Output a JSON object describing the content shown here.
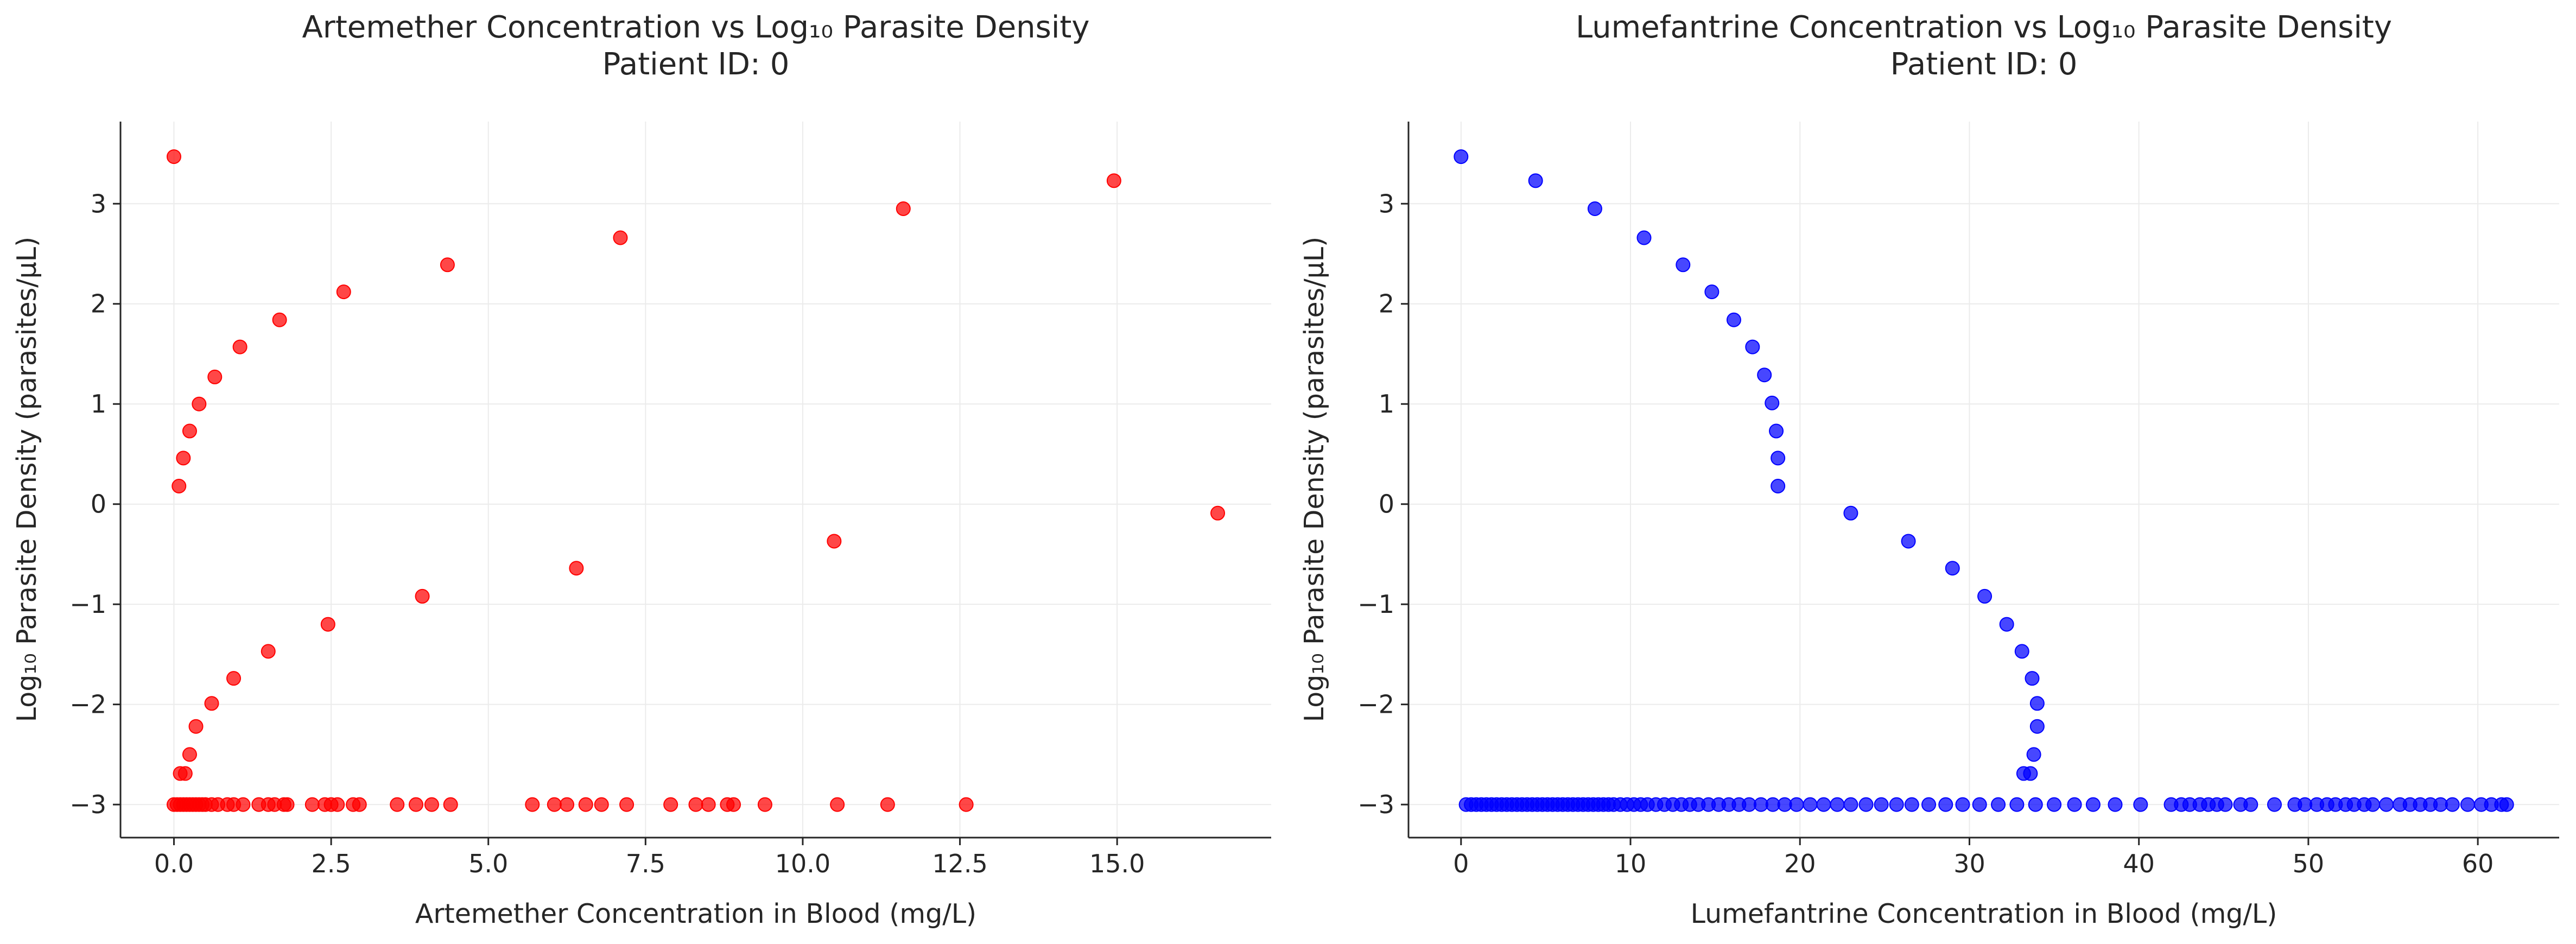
{
  "chart_data": [
    {
      "type": "scatter",
      "title": "Artemether Concentration vs Log₁₀ Parasite Density",
      "subtitle": "Patient ID: 0",
      "xlabel": "Artemether Concentration in Blood (mg/L)",
      "ylabel": "Log₁₀ Parasite Density (parasites/μL)",
      "xlim": [
        -0.85,
        17.45
      ],
      "ylim": [
        -3.33,
        3.82
      ],
      "xticks": [
        0,
        2.5,
        5,
        7.5,
        10,
        12.5,
        15
      ],
      "xtick_labels": [
        "0.0",
        "2.5",
        "5.0",
        "7.5",
        "10.0",
        "12.5",
        "15.0"
      ],
      "yticks": [
        -3,
        -2,
        -1,
        0,
        1,
        2,
        3
      ],
      "ytick_labels": [
        "−3",
        "−2",
        "−1",
        "0",
        "1",
        "2",
        "3"
      ],
      "grid": true,
      "color": "#ff0000",
      "points": [
        [
          0.0,
          3.47
        ],
        [
          0.08,
          0.18
        ],
        [
          0.15,
          0.46
        ],
        [
          0.25,
          0.73
        ],
        [
          0.4,
          1.0
        ],
        [
          0.65,
          1.27
        ],
        [
          1.05,
          1.57
        ],
        [
          1.68,
          1.84
        ],
        [
          2.7,
          2.12
        ],
        [
          4.35,
          2.39
        ],
        [
          7.1,
          2.66
        ],
        [
          11.6,
          2.95
        ],
        [
          14.95,
          3.23
        ],
        [
          16.6,
          -0.09
        ],
        [
          10.5,
          -0.37
        ],
        [
          6.4,
          -0.64
        ],
        [
          3.95,
          -0.92
        ],
        [
          2.45,
          -1.2
        ],
        [
          1.5,
          -1.47
        ],
        [
          0.95,
          -1.74
        ],
        [
          0.6,
          -1.99
        ],
        [
          0.35,
          -2.22
        ],
        [
          0.25,
          -2.5
        ],
        [
          0.1,
          -2.69
        ],
        [
          0.18,
          -2.69
        ],
        [
          0.0,
          -3.0
        ],
        [
          0.05,
          -3.0
        ],
        [
          0.1,
          -3.0
        ],
        [
          0.15,
          -3.0
        ],
        [
          0.2,
          -3.0
        ],
        [
          0.25,
          -3.0
        ],
        [
          0.3,
          -3.0
        ],
        [
          0.35,
          -3.0
        ],
        [
          0.4,
          -3.0
        ],
        [
          0.45,
          -3.0
        ],
        [
          0.5,
          -3.0
        ],
        [
          0.6,
          -3.0
        ],
        [
          0.7,
          -3.0
        ],
        [
          0.85,
          -3.0
        ],
        [
          0.95,
          -3.0
        ],
        [
          1.1,
          -3.0
        ],
        [
          1.35,
          -3.0
        ],
        [
          1.5,
          -3.0
        ],
        [
          1.6,
          -3.0
        ],
        [
          1.75,
          -3.0
        ],
        [
          1.8,
          -3.0
        ],
        [
          2.2,
          -3.0
        ],
        [
          2.4,
          -3.0
        ],
        [
          2.5,
          -3.0
        ],
        [
          2.6,
          -3.0
        ],
        [
          2.85,
          -3.0
        ],
        [
          2.95,
          -3.0
        ],
        [
          3.55,
          -3.0
        ],
        [
          3.85,
          -3.0
        ],
        [
          4.1,
          -3.0
        ],
        [
          4.4,
          -3.0
        ],
        [
          5.7,
          -3.0
        ],
        [
          6.05,
          -3.0
        ],
        [
          6.25,
          -3.0
        ],
        [
          6.55,
          -3.0
        ],
        [
          6.8,
          -3.0
        ],
        [
          7.2,
          -3.0
        ],
        [
          7.9,
          -3.0
        ],
        [
          8.3,
          -3.0
        ],
        [
          8.5,
          -3.0
        ],
        [
          8.8,
          -3.0
        ],
        [
          8.9,
          -3.0
        ],
        [
          9.4,
          -3.0
        ],
        [
          10.55,
          -3.0
        ],
        [
          11.35,
          -3.0
        ],
        [
          12.6,
          -3.0
        ]
      ]
    },
    {
      "type": "scatter",
      "title": "Lumefantrine Concentration vs Log₁₀ Parasite Density",
      "subtitle": "Patient ID: 0",
      "xlabel": "Lumefantrine Concentration in Blood (mg/L)",
      "ylabel": "Log₁₀ Parasite Density (parasites/μL)",
      "xlim": [
        -3.1,
        64.8
      ],
      "ylim": [
        -3.33,
        3.82
      ],
      "xticks": [
        0,
        10,
        20,
        30,
        40,
        50,
        60
      ],
      "xtick_labels": [
        "0",
        "10",
        "20",
        "30",
        "40",
        "50",
        "60"
      ],
      "yticks": [
        -3,
        -2,
        -1,
        0,
        1,
        2,
        3
      ],
      "ytick_labels": [
        "−3",
        "−2",
        "−1",
        "0",
        "1",
        "2",
        "3"
      ],
      "grid": true,
      "color": "#0000ff",
      "points": [
        [
          0.0,
          3.47
        ],
        [
          4.4,
          3.23
        ],
        [
          7.9,
          2.95
        ],
        [
          10.8,
          2.66
        ],
        [
          13.1,
          2.39
        ],
        [
          14.8,
          2.12
        ],
        [
          16.1,
          1.84
        ],
        [
          17.2,
          1.57
        ],
        [
          17.9,
          1.29
        ],
        [
          18.35,
          1.01
        ],
        [
          18.6,
          0.73
        ],
        [
          18.7,
          0.46
        ],
        [
          18.7,
          0.18
        ],
        [
          23.0,
          -0.09
        ],
        [
          26.4,
          -0.37
        ],
        [
          29.0,
          -0.64
        ],
        [
          30.9,
          -0.92
        ],
        [
          32.2,
          -1.2
        ],
        [
          33.1,
          -1.47
        ],
        [
          33.7,
          -1.74
        ],
        [
          34.0,
          -1.99
        ],
        [
          34.0,
          -2.22
        ],
        [
          33.8,
          -2.5
        ],
        [
          33.2,
          -2.69
        ],
        [
          33.6,
          -2.69
        ],
        [
          0.3,
          -3.0
        ],
        [
          0.6,
          -3.0
        ],
        [
          0.9,
          -3.0
        ],
        [
          1.2,
          -3.0
        ],
        [
          1.5,
          -3.0
        ],
        [
          1.8,
          -3.0
        ],
        [
          2.1,
          -3.0
        ],
        [
          2.4,
          -3.0
        ],
        [
          2.7,
          -3.0
        ],
        [
          3.0,
          -3.0
        ],
        [
          3.3,
          -3.0
        ],
        [
          3.6,
          -3.0
        ],
        [
          3.9,
          -3.0
        ],
        [
          4.2,
          -3.0
        ],
        [
          4.5,
          -3.0
        ],
        [
          4.8,
          -3.0
        ],
        [
          5.1,
          -3.0
        ],
        [
          5.4,
          -3.0
        ],
        [
          5.7,
          -3.0
        ],
        [
          6.0,
          -3.0
        ],
        [
          6.3,
          -3.0
        ],
        [
          6.6,
          -3.0
        ],
        [
          6.9,
          -3.0
        ],
        [
          7.2,
          -3.0
        ],
        [
          7.5,
          -3.0
        ],
        [
          7.8,
          -3.0
        ],
        [
          8.1,
          -3.0
        ],
        [
          8.4,
          -3.0
        ],
        [
          8.7,
          -3.0
        ],
        [
          9.0,
          -3.0
        ],
        [
          9.4,
          -3.0
        ],
        [
          9.8,
          -3.0
        ],
        [
          10.2,
          -3.0
        ],
        [
          10.6,
          -3.0
        ],
        [
          11.0,
          -3.0
        ],
        [
          11.5,
          -3.0
        ],
        [
          12.0,
          -3.0
        ],
        [
          12.5,
          -3.0
        ],
        [
          13.0,
          -3.0
        ],
        [
          13.5,
          -3.0
        ],
        [
          14.0,
          -3.0
        ],
        [
          14.6,
          -3.0
        ],
        [
          15.2,
          -3.0
        ],
        [
          15.8,
          -3.0
        ],
        [
          16.4,
          -3.0
        ],
        [
          17.0,
          -3.0
        ],
        [
          17.7,
          -3.0
        ],
        [
          18.4,
          -3.0
        ],
        [
          19.1,
          -3.0
        ],
        [
          19.8,
          -3.0
        ],
        [
          20.6,
          -3.0
        ],
        [
          21.4,
          -3.0
        ],
        [
          22.2,
          -3.0
        ],
        [
          23.0,
          -3.0
        ],
        [
          23.9,
          -3.0
        ],
        [
          24.8,
          -3.0
        ],
        [
          25.7,
          -3.0
        ],
        [
          26.6,
          -3.0
        ],
        [
          27.6,
          -3.0
        ],
        [
          28.6,
          -3.0
        ],
        [
          29.6,
          -3.0
        ],
        [
          30.6,
          -3.0
        ],
        [
          31.7,
          -3.0
        ],
        [
          32.8,
          -3.0
        ],
        [
          33.9,
          -3.0
        ],
        [
          35.0,
          -3.0
        ],
        [
          36.2,
          -3.0
        ],
        [
          37.3,
          -3.0
        ],
        [
          38.6,
          -3.0
        ],
        [
          40.1,
          -3.0
        ],
        [
          41.9,
          -3.0
        ],
        [
          42.5,
          -3.0
        ],
        [
          43.0,
          -3.0
        ],
        [
          43.6,
          -3.0
        ],
        [
          44.1,
          -3.0
        ],
        [
          44.6,
          -3.0
        ],
        [
          45.1,
          -3.0
        ],
        [
          46.0,
          -3.0
        ],
        [
          46.6,
          -3.0
        ],
        [
          48.0,
          -3.0
        ],
        [
          49.2,
          -3.0
        ],
        [
          49.8,
          -3.0
        ],
        [
          50.5,
          -3.0
        ],
        [
          51.1,
          -3.0
        ],
        [
          51.6,
          -3.0
        ],
        [
          52.2,
          -3.0
        ],
        [
          52.7,
          -3.0
        ],
        [
          53.3,
          -3.0
        ],
        [
          53.8,
          -3.0
        ],
        [
          54.6,
          -3.0
        ],
        [
          55.4,
          -3.0
        ],
        [
          56.0,
          -3.0
        ],
        [
          56.6,
          -3.0
        ],
        [
          57.2,
          -3.0
        ],
        [
          57.8,
          -3.0
        ],
        [
          58.5,
          -3.0
        ],
        [
          59.4,
          -3.0
        ],
        [
          60.2,
          -3.0
        ],
        [
          60.8,
          -3.0
        ],
        [
          61.4,
          -3.0
        ],
        [
          61.7,
          -3.0
        ]
      ]
    }
  ]
}
